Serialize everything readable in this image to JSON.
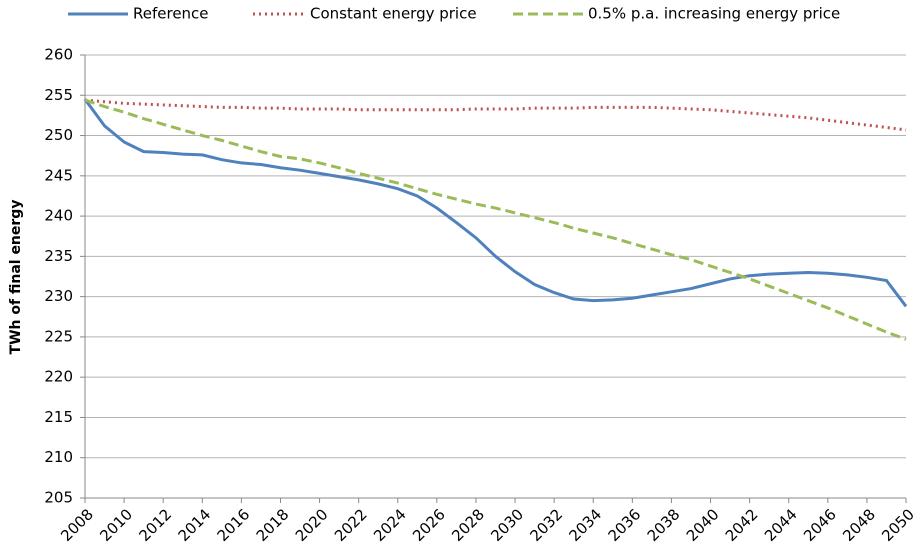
{
  "chart_data": {
    "type": "line",
    "y_label": "TWh of final energy",
    "x": [
      2008,
      2009,
      2010,
      2011,
      2012,
      2013,
      2014,
      2015,
      2016,
      2017,
      2018,
      2019,
      2020,
      2021,
      2022,
      2023,
      2024,
      2025,
      2026,
      2027,
      2028,
      2029,
      2030,
      2031,
      2032,
      2033,
      2034,
      2035,
      2036,
      2037,
      2038,
      2039,
      2040,
      2041,
      2042,
      2043,
      2044,
      2045,
      2046,
      2047,
      2048,
      2049,
      2050
    ],
    "xlim": [
      2008,
      2050
    ],
    "xticks": [
      2008,
      2010,
      2012,
      2014,
      2016,
      2018,
      2020,
      2022,
      2024,
      2026,
      2028,
      2030,
      2032,
      2034,
      2036,
      2038,
      2040,
      2042,
      2044,
      2046,
      2048,
      2050
    ],
    "ylim": [
      205,
      260
    ],
    "yticks": [
      205,
      210,
      215,
      220,
      225,
      230,
      235,
      240,
      245,
      250,
      255,
      260
    ],
    "grid": true,
    "legend": "top",
    "series": [
      {
        "name": "Reference",
        "color": "#4f81bd",
        "line_style": "solid",
        "values": [
          254.5,
          251.2,
          249.2,
          248.0,
          247.9,
          247.7,
          247.6,
          247.0,
          246.6,
          246.4,
          246.0,
          245.7,
          245.3,
          244.9,
          244.5,
          244.0,
          243.4,
          242.5,
          241.0,
          239.2,
          237.3,
          235.0,
          233.1,
          231.5,
          230.5,
          229.7,
          229.5,
          229.6,
          229.8,
          230.2,
          230.6,
          231.0,
          231.6,
          232.2,
          232.6,
          232.8,
          232.9,
          233.0,
          232.9,
          232.7,
          232.4,
          232.0,
          228.8
        ]
      },
      {
        "name": "Constant energy price",
        "color": "#c0504d",
        "line_style": "dotted",
        "values": [
          254.4,
          254.2,
          254.0,
          253.9,
          253.8,
          253.7,
          253.6,
          253.5,
          253.5,
          253.4,
          253.4,
          253.3,
          253.3,
          253.3,
          253.2,
          253.2,
          253.2,
          253.2,
          253.2,
          253.2,
          253.3,
          253.3,
          253.3,
          253.4,
          253.4,
          253.4,
          253.5,
          253.5,
          253.5,
          253.5,
          253.4,
          253.3,
          253.2,
          253.0,
          252.8,
          252.6,
          252.4,
          252.2,
          251.9,
          251.6,
          251.3,
          251.0,
          250.7
        ]
      },
      {
        "name": "0.5% p.a. increasing energy price",
        "color": "#9bbb59",
        "line_style": "dashed",
        "values": [
          254.4,
          253.6,
          252.9,
          252.1,
          251.4,
          250.7,
          250.0,
          249.4,
          248.7,
          248.0,
          247.4,
          247.1,
          246.6,
          246.0,
          245.3,
          244.7,
          244.1,
          243.4,
          242.7,
          242.1,
          241.5,
          241.0,
          240.4,
          239.8,
          239.2,
          238.5,
          237.9,
          237.3,
          236.6,
          235.9,
          235.2,
          234.6,
          233.8,
          233.0,
          232.2,
          231.3,
          230.4,
          229.5,
          228.6,
          227.6,
          226.6,
          225.6,
          224.7
        ]
      }
    ]
  }
}
